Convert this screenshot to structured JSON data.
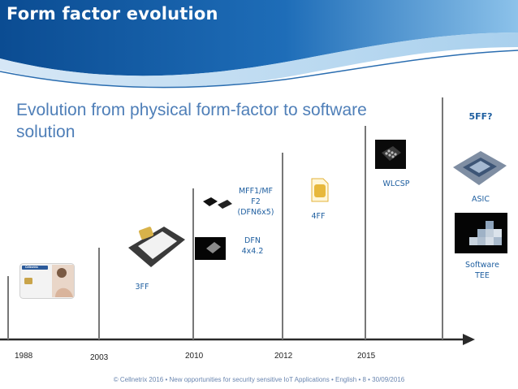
{
  "header": {
    "title": "Form factor evolution"
  },
  "subtitle": "Evolution from physical form-factor to software solution",
  "timeline": {
    "years": [
      "1988",
      "2003",
      "2010",
      "2012",
      "2015"
    ]
  },
  "labels": {
    "ff3": "3FF",
    "mff": "MFF1/MF F2 (DFN6x5)",
    "mff_lines": [
      "MFF1/MF",
      "F2",
      "(DFN6x5)"
    ],
    "dfn": "DFN 4x4.2",
    "dfn_lines": [
      "DFN",
      "4x4.2"
    ],
    "ff4": "4FF",
    "wlcsp": "WLCSP",
    "ff5": "5FF?",
    "asic": "ASIC",
    "software": "Software TEE",
    "software_lines": [
      "Software",
      "TEE"
    ]
  },
  "card_brand": "Cellnetrix",
  "footer": "© Cellnetrix 2016 • New opportunities for security sensitive IoT Applications • English • 8 • 30/09/2016",
  "colors": {
    "accent": "#1f5fa0",
    "subtitle": "#4f7fb8",
    "header_dark": "#0a4f96",
    "header_light": "#5fa3db"
  }
}
